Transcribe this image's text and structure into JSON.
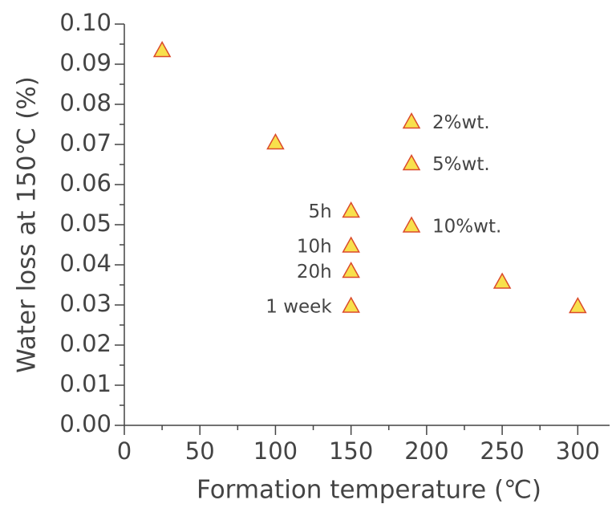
{
  "chart_data": {
    "type": "scatter",
    "xlabel": "Formation temperature (℃)",
    "ylabel": "Water loss at 150℃ (%)",
    "x": [
      25,
      100,
      150,
      150,
      150,
      150,
      190,
      190,
      190,
      250,
      300
    ],
    "values": [
      0.0935,
      0.0705,
      0.0535,
      0.0448,
      0.0385,
      0.0298,
      0.0757,
      0.0653,
      0.0498,
      0.0358,
      0.0297
    ],
    "point_labels": [
      null,
      null,
      "5h",
      "10h",
      "20h",
      "1 week",
      "2%wt.",
      "5%wt.",
      "10%wt.",
      null,
      null
    ],
    "color": "#f8e04c",
    "edge_color": "#db4a2b",
    "xlim": [
      0,
      320
    ],
    "ylim": [
      0,
      0.1
    ],
    "xticks": [
      0,
      50,
      100,
      150,
      200,
      250,
      300
    ],
    "yticks": [
      {
        "value": 0,
        "label": "0.00"
      },
      {
        "value": 0.01,
        "label": "0.01"
      },
      {
        "value": 0.02,
        "label": "0.02"
      },
      {
        "value": 0.03,
        "label": "0.03"
      },
      {
        "value": 0.04,
        "label": "0.04"
      },
      {
        "value": 0.05,
        "label": "0.05"
      },
      {
        "value": 0.06,
        "label": "0.06"
      },
      {
        "value": 0.07,
        "label": "0.07"
      },
      {
        "value": 0.08,
        "label": "0.08"
      },
      {
        "value": 0.09,
        "label": "0.09"
      },
      {
        "value": 0.1,
        "label": "0.10"
      }
    ]
  }
}
